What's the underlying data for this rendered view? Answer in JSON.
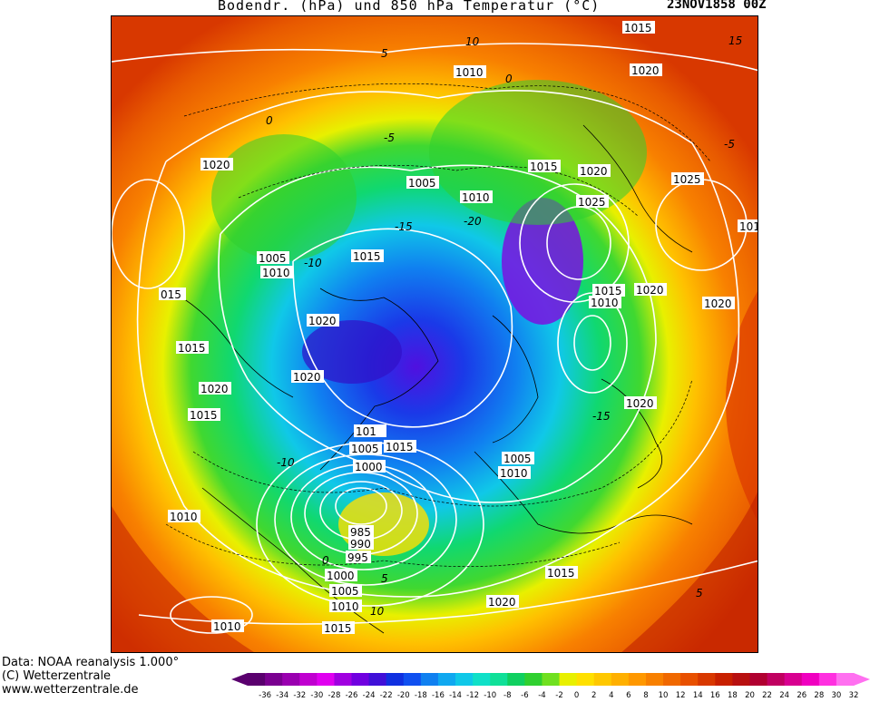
{
  "header": {
    "title": "Bodendr. (hPa) und 850 hPa Temperatur (°C)",
    "date": "23NOV1858 00Z"
  },
  "footer": {
    "line1": "Data: NOAA reanalysis 1.000°",
    "line2": "(C) Wetterzentrale",
    "line3": "www.wetterzentrale.de"
  },
  "colorbar": {
    "ticks": [
      "-36",
      "-34",
      "-32",
      "-30",
      "-28",
      "-26",
      "-24",
      "-22",
      "-20",
      "-18",
      "-16",
      "-14",
      "-12",
      "-10",
      "-8",
      "-6",
      "-4",
      "-2",
      "0",
      "2",
      "4",
      "6",
      "8",
      "10",
      "12",
      "14",
      "16",
      "18",
      "20",
      "22",
      "24",
      "26",
      "28",
      "30",
      "32"
    ],
    "colors": [
      "#5a006e",
      "#7a0090",
      "#9a00b0",
      "#c000d0",
      "#e000f0",
      "#a000e0",
      "#7000e0",
      "#4010d8",
      "#1030e0",
      "#1050f0",
      "#1080f0",
      "#10a8f0",
      "#10c8e8",
      "#10e0c8",
      "#10e098",
      "#10d060",
      "#30d030",
      "#70e020",
      "#e8f000",
      "#ffe000",
      "#ffc800",
      "#ffb000",
      "#ff9800",
      "#f88000",
      "#f06800",
      "#e85000",
      "#d83800",
      "#c82000",
      "#b81010",
      "#b00030",
      "#c00060",
      "#d80090",
      "#f000c0",
      "#ff30e0",
      "#ff70f0"
    ]
  },
  "isobar_labels": [
    {
      "text": "1015"
    },
    {
      "text": "1010"
    },
    {
      "text": "1020"
    },
    {
      "text": "1020"
    },
    {
      "text": "1005"
    },
    {
      "text": "1010"
    },
    {
      "text": "1015"
    },
    {
      "text": "1020"
    },
    {
      "text": "1025"
    },
    {
      "text": "1025"
    },
    {
      "text": "101"
    },
    {
      "text": "1005"
    },
    {
      "text": "1010"
    },
    {
      "text": "1015"
    },
    {
      "text": "015"
    },
    {
      "text": "1020"
    },
    {
      "text": "1015"
    },
    {
      "text": "1010"
    },
    {
      "text": "1020"
    },
    {
      "text": "1020"
    },
    {
      "text": "1020"
    },
    {
      "text": "1015"
    },
    {
      "text": "1020"
    },
    {
      "text": "1020"
    },
    {
      "text": "101"
    },
    {
      "text": "1005"
    },
    {
      "text": "1015"
    },
    {
      "text": "1015"
    },
    {
      "text": "1000"
    },
    {
      "text": "1005"
    },
    {
      "text": "1010"
    },
    {
      "text": "1010"
    },
    {
      "text": "985"
    },
    {
      "text": "990"
    },
    {
      "text": "995"
    },
    {
      "text": "1000"
    },
    {
      "text": "1005"
    },
    {
      "text": "1010"
    },
    {
      "text": "1015"
    },
    {
      "text": "1020"
    },
    {
      "text": "1015"
    },
    {
      "text": "1010"
    }
  ],
  "temp_labels": [
    {
      "text": "10"
    },
    {
      "text": "15"
    },
    {
      "text": "5"
    },
    {
      "text": "0"
    },
    {
      "text": "0"
    },
    {
      "text": "-5"
    },
    {
      "text": "-5"
    },
    {
      "text": "-15"
    },
    {
      "text": "-20"
    },
    {
      "text": "-10"
    },
    {
      "text": "-10"
    },
    {
      "text": "-15"
    },
    {
      "text": "0"
    },
    {
      "text": "5"
    },
    {
      "text": "10"
    },
    {
      "text": "5"
    }
  ]
}
